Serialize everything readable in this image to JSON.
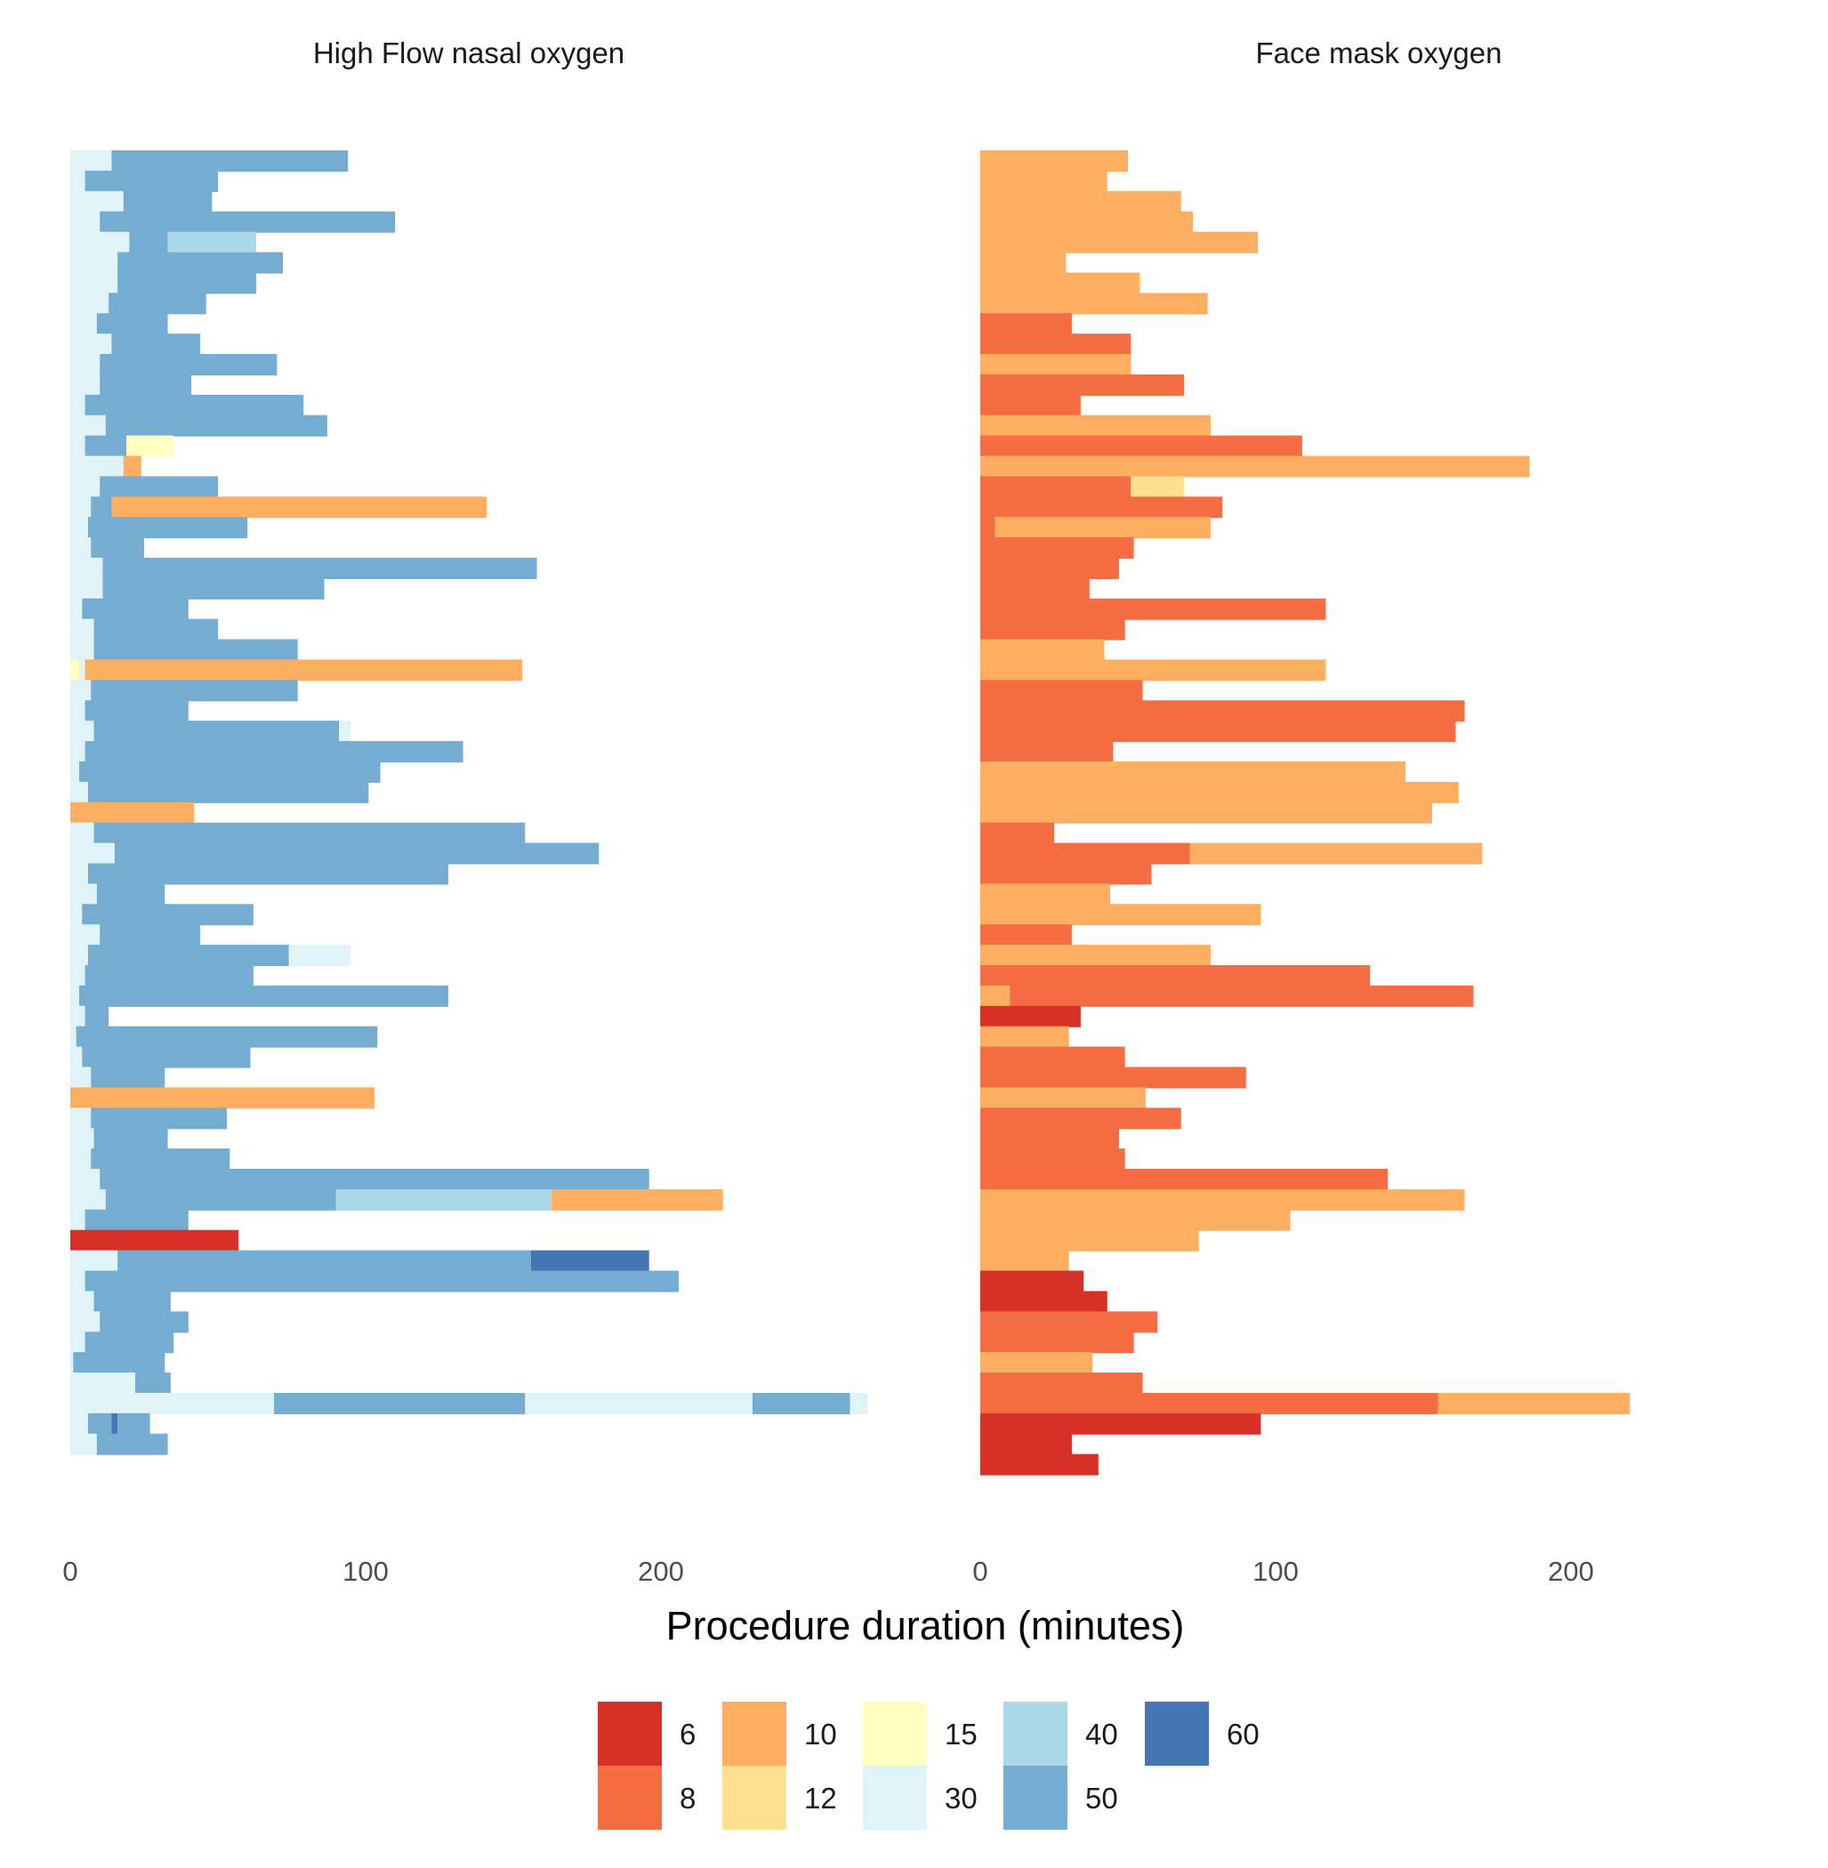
{
  "chart_data": {
    "type": "bar",
    "orientation": "horizontal-stacked",
    "xlabel": "Procedure duration (minutes)",
    "x_ticks": [
      0,
      100,
      200
    ],
    "xlim": [
      0,
      270
    ],
    "grid": false,
    "legend": {
      "placement": "bottom",
      "title": "",
      "entries": [
        {
          "label": "6",
          "color": "#d73027"
        },
        {
          "label": "8",
          "color": "#f46d43"
        },
        {
          "label": "10",
          "color": "#fdae61"
        },
        {
          "label": "12",
          "color": "#fee090"
        },
        {
          "label": "15",
          "color": "#ffffbf"
        },
        {
          "label": "30",
          "color": "#e0f3f8"
        },
        {
          "label": "40",
          "color": "#abd9e9"
        },
        {
          "label": "50",
          "color": "#74add1"
        },
        {
          "label": "60",
          "color": "#4575b4"
        }
      ]
    },
    "panels": [
      {
        "title": "High Flow nasal oxygen",
        "rows": [
          [
            [
              30,
              14
            ],
            [
              50,
              94
            ]
          ],
          [
            [
              30,
              5
            ],
            [
              50,
              50
            ]
          ],
          [
            [
              30,
              18
            ],
            [
              50,
              48
            ]
          ],
          [
            [
              30,
              10
            ],
            [
              50,
              110
            ]
          ],
          [
            [
              30,
              20
            ],
            [
              50,
              33
            ],
            [
              40,
              63
            ]
          ],
          [
            [
              30,
              16
            ],
            [
              50,
              72
            ]
          ],
          [
            [
              30,
              16
            ],
            [
              50,
              63
            ]
          ],
          [
            [
              30,
              13
            ],
            [
              50,
              46
            ]
          ],
          [
            [
              30,
              9
            ],
            [
              50,
              33
            ]
          ],
          [
            [
              30,
              14
            ],
            [
              50,
              44
            ]
          ],
          [
            [
              30,
              10
            ],
            [
              50,
              70
            ]
          ],
          [
            [
              30,
              10
            ],
            [
              50,
              41
            ]
          ],
          [
            [
              30,
              5
            ],
            [
              50,
              79
            ]
          ],
          [
            [
              30,
              12
            ],
            [
              50,
              87
            ]
          ],
          [
            [
              30,
              5
            ],
            [
              50,
              19
            ],
            [
              15,
              35
            ]
          ],
          [
            [
              30,
              18
            ],
            [
              10,
              24
            ]
          ],
          [
            [
              30,
              10
            ],
            [
              50,
              50
            ]
          ],
          [
            [
              30,
              7
            ],
            [
              50,
              14
            ],
            [
              10,
              141
            ]
          ],
          [
            [
              30,
              6
            ],
            [
              50,
              60
            ]
          ],
          [
            [
              30,
              7
            ],
            [
              50,
              25
            ]
          ],
          [
            [
              30,
              11
            ],
            [
              50,
              158
            ]
          ],
          [
            [
              30,
              11
            ],
            [
              50,
              86
            ]
          ],
          [
            [
              30,
              4
            ],
            [
              50,
              40
            ]
          ],
          [
            [
              30,
              8
            ],
            [
              50,
              50
            ]
          ],
          [
            [
              30,
              8
            ],
            [
              50,
              77
            ]
          ],
          [
            [
              15,
              3
            ],
            [
              30,
              5
            ],
            [
              10,
              153
            ]
          ],
          [
            [
              30,
              7
            ],
            [
              50,
              77
            ]
          ],
          [
            [
              30,
              5
            ],
            [
              50,
              40
            ]
          ],
          [
            [
              30,
              8
            ],
            [
              50,
              91
            ],
            [
              30,
              95
            ]
          ],
          [
            [
              30,
              5
            ],
            [
              50,
              133
            ]
          ],
          [
            [
              30,
              3
            ],
            [
              50,
              105
            ]
          ],
          [
            [
              30,
              6
            ],
            [
              50,
              101
            ]
          ],
          [
            [
              10,
              42
            ]
          ],
          [
            [
              30,
              8
            ],
            [
              50,
              154
            ]
          ],
          [
            [
              30,
              15
            ],
            [
              50,
              179
            ]
          ],
          [
            [
              30,
              6
            ],
            [
              50,
              128
            ]
          ],
          [
            [
              30,
              9
            ],
            [
              50,
              32
            ]
          ],
          [
            [
              30,
              4
            ],
            [
              50,
              62
            ]
          ],
          [
            [
              30,
              10
            ],
            [
              50,
              44
            ]
          ],
          [
            [
              30,
              6
            ],
            [
              50,
              74
            ],
            [
              30,
              95
            ]
          ],
          [
            [
              30,
              5
            ],
            [
              50,
              62
            ]
          ],
          [
            [
              30,
              3
            ],
            [
              50,
              128
            ]
          ],
          [
            [
              30,
              5
            ],
            [
              50,
              13
            ]
          ],
          [
            [
              30,
              2
            ],
            [
              50,
              104
            ]
          ],
          [
            [
              30,
              4
            ],
            [
              50,
              61
            ]
          ],
          [
            [
              30,
              7
            ],
            [
              50,
              32
            ]
          ],
          [
            [
              10,
              103
            ]
          ],
          [
            [
              30,
              7
            ],
            [
              50,
              53
            ]
          ],
          [
            [
              30,
              8
            ],
            [
              50,
              33
            ]
          ],
          [
            [
              30,
              7
            ],
            [
              50,
              54
            ]
          ],
          [
            [
              30,
              10
            ],
            [
              50,
              196
            ]
          ],
          [
            [
              30,
              12
            ],
            [
              50,
              90
            ],
            [
              40,
              163
            ],
            [
              10,
              221
            ]
          ],
          [
            [
              30,
              5
            ],
            [
              50,
              40
            ]
          ],
          [
            [
              6,
              57
            ]
          ],
          [
            [
              30,
              16
            ],
            [
              50,
              156
            ],
            [
              60,
              196
            ]
          ],
          [
            [
              30,
              5
            ],
            [
              50,
              206
            ]
          ],
          [
            [
              30,
              8
            ],
            [
              50,
              34
            ]
          ],
          [
            [
              30,
              10
            ],
            [
              50,
              40
            ]
          ],
          [
            [
              30,
              5
            ],
            [
              50,
              35
            ]
          ],
          [
            [
              30,
              1
            ],
            [
              50,
              32
            ]
          ],
          [
            [
              30,
              22
            ],
            [
              50,
              34
            ]
          ],
          [
            [
              30,
              69
            ],
            [
              50,
              154
            ],
            [
              30,
              231
            ],
            [
              50,
              264
            ],
            [
              30,
              270
            ]
          ],
          [
            [
              30,
              6
            ],
            [
              50,
              14
            ],
            [
              60,
              16
            ],
            [
              50,
              27
            ]
          ],
          [
            [
              30,
              9
            ],
            [
              50,
              33
            ]
          ]
        ]
      },
      {
        "title": "Face mask oxygen",
        "rows": [
          [
            [
              10,
              50
            ]
          ],
          [
            [
              10,
              43
            ]
          ],
          [
            [
              10,
              68
            ]
          ],
          [
            [
              10,
              72
            ]
          ],
          [
            [
              10,
              94
            ]
          ],
          [
            [
              10,
              29
            ]
          ],
          [
            [
              10,
              54
            ]
          ],
          [
            [
              10,
              77
            ]
          ],
          [
            [
              8,
              31
            ]
          ],
          [
            [
              8,
              51
            ]
          ],
          [
            [
              10,
              51
            ]
          ],
          [
            [
              8,
              69
            ]
          ],
          [
            [
              8,
              34
            ]
          ],
          [
            [
              10,
              78
            ]
          ],
          [
            [
              8,
              109
            ]
          ],
          [
            [
              10,
              186
            ]
          ],
          [
            [
              8,
              51
            ],
            [
              12,
              69
            ]
          ],
          [
            [
              8,
              82
            ]
          ],
          [
            [
              8,
              5
            ],
            [
              10,
              78
            ]
          ],
          [
            [
              8,
              52
            ]
          ],
          [
            [
              8,
              47
            ]
          ],
          [
            [
              8,
              37
            ]
          ],
          [
            [
              8,
              117
            ]
          ],
          [
            [
              8,
              49
            ]
          ],
          [
            [
              10,
              42
            ]
          ],
          [
            [
              10,
              117
            ]
          ],
          [
            [
              8,
              55
            ]
          ],
          [
            [
              8,
              164
            ]
          ],
          [
            [
              8,
              161
            ]
          ],
          [
            [
              8,
              45
            ]
          ],
          [
            [
              10,
              144
            ]
          ],
          [
            [
              10,
              162
            ]
          ],
          [
            [
              10,
              153
            ]
          ],
          [
            [
              8,
              25
            ]
          ],
          [
            [
              8,
              71
            ],
            [
              10,
              170
            ]
          ],
          [
            [
              8,
              58
            ]
          ],
          [
            [
              10,
              44
            ]
          ],
          [
            [
              10,
              95
            ]
          ],
          [
            [
              8,
              31
            ]
          ],
          [
            [
              10,
              78
            ]
          ],
          [
            [
              8,
              132
            ]
          ],
          [
            [
              10,
              10
            ],
            [
              8,
              167
            ]
          ],
          [
            [
              6,
              34
            ]
          ],
          [
            [
              10,
              30
            ]
          ],
          [
            [
              8,
              49
            ]
          ],
          [
            [
              8,
              90
            ]
          ],
          [
            [
              10,
              56
            ]
          ],
          [
            [
              8,
              68
            ]
          ],
          [
            [
              8,
              47
            ]
          ],
          [
            [
              8,
              49
            ]
          ],
          [
            [
              8,
              138
            ]
          ],
          [
            [
              10,
              164
            ]
          ],
          [
            [
              10,
              105
            ]
          ],
          [
            [
              10,
              74
            ]
          ],
          [
            [
              10,
              30
            ]
          ],
          [
            [
              6,
              35
            ]
          ],
          [
            [
              6,
              43
            ]
          ],
          [
            [
              8,
              60
            ]
          ],
          [
            [
              8,
              52
            ]
          ],
          [
            [
              10,
              38
            ]
          ],
          [
            [
              8,
              55
            ]
          ],
          [
            [
              8,
              155
            ],
            [
              10,
              220
            ]
          ],
          [
            [
              6,
              95
            ]
          ],
          [
            [
              6,
              31
            ]
          ],
          [
            [
              6,
              40
            ]
          ]
        ]
      }
    ]
  }
}
